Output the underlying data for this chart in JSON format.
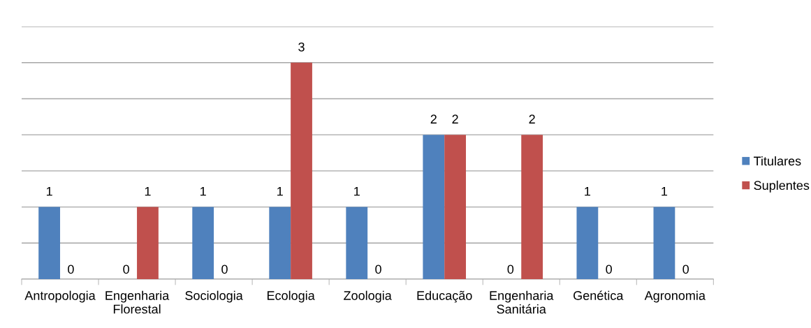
{
  "chart_data": {
    "type": "bar",
    "categories": [
      "Antropologia",
      "Engenharia\nFlorestal",
      "Sociologia",
      "Ecologia",
      "Zoologia",
      "Educação",
      "Engenharia\nSanitária",
      "Genética",
      "Agronomia"
    ],
    "series": [
      {
        "name": "Titulares",
        "color": "#4f81bd",
        "values": [
          1,
          0,
          1,
          1,
          1,
          2,
          0,
          1,
          1
        ]
      },
      {
        "name": "Suplentes",
        "color": "#c0504d",
        "values": [
          0,
          1,
          0,
          3,
          0,
          2,
          2,
          0,
          0
        ]
      }
    ],
    "ylim": [
      0,
      3.5
    ],
    "yticks": [
      {
        "value": 0,
        "label": null
      },
      {
        "value": 0.5,
        "label": null
      },
      {
        "value": 1,
        "label": null
      },
      {
        "value": 1.5,
        "label": null
      },
      {
        "value": 2,
        "label": null
      },
      {
        "value": 2.5,
        "label": null
      },
      {
        "value": 3,
        "label": null
      },
      {
        "value": 3.5,
        "label": null
      }
    ],
    "tick_labels": "x",
    "grid": "y",
    "legend": "right",
    "data_labels": true
  }
}
